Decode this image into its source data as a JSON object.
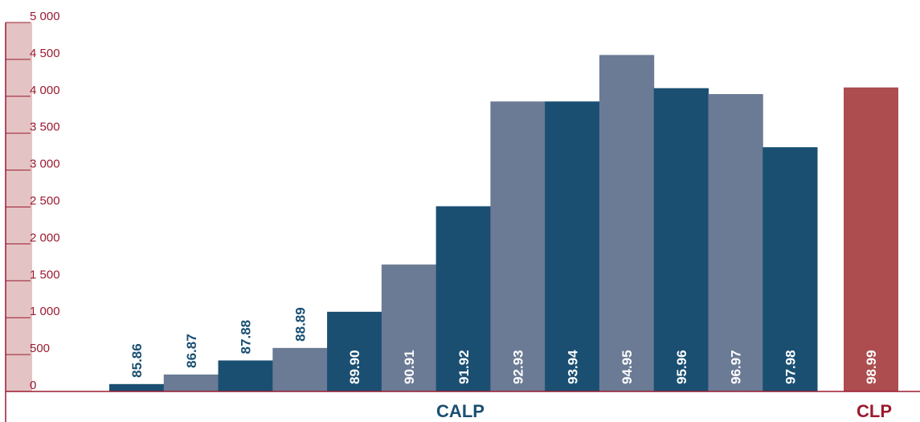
{
  "chart_data": {
    "type": "bar",
    "ylim": [
      0,
      5000
    ],
    "yticks": [
      {
        "value": 0,
        "label": "0"
      },
      {
        "value": 500,
        "label": "500"
      },
      {
        "value": 1000,
        "label": "1 000"
      },
      {
        "value": 1500,
        "label": "1 500"
      },
      {
        "value": 2000,
        "label": "2 000"
      },
      {
        "value": 2500,
        "label": "2 500"
      },
      {
        "value": 3000,
        "label": "3 000"
      },
      {
        "value": 3500,
        "label": "3 500"
      },
      {
        "value": 4000,
        "label": "4 000"
      },
      {
        "value": 4500,
        "label": "4 500"
      },
      {
        "value": 5000,
        "label": "5 000"
      }
    ],
    "categories": [
      "85.86",
      "86.87",
      "87.88",
      "88.89",
      "89.90",
      "90.91",
      "91.92",
      "92.93",
      "93.94",
      "94.95",
      "95.96",
      "96.97",
      "97.98",
      "98.99"
    ],
    "values": [
      100,
      230,
      420,
      590,
      1080,
      1720,
      2510,
      3930,
      3930,
      4560,
      4110,
      4030,
      3310,
      4120
    ],
    "groups": [
      {
        "label": "CALP",
        "color": "#1a4f72"
      },
      {
        "label": "CLP",
        "color": "#9b1b30"
      }
    ],
    "bar_colors": [
      "#1a4f72",
      "#6b7b95",
      "#1a4f72",
      "#6b7b95",
      "#1a4f72",
      "#6b7b95",
      "#1a4f72",
      "#6b7b95",
      "#1a4f72",
      "#6b7b95",
      "#1a4f72",
      "#6b7b95",
      "#1a4f72",
      "#ad4d4f"
    ],
    "grid": false,
    "legend": "none"
  },
  "colors": {
    "axis": "#9b1b30",
    "axis_band": "#e3c3c3",
    "label_dark": "#1a4f72",
    "label_light": "#ffffff"
  }
}
